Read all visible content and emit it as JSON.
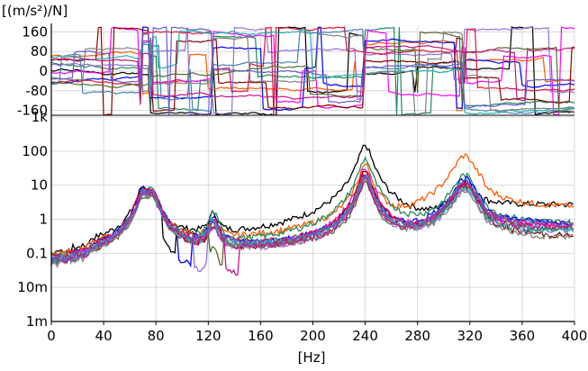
{
  "chart_data": {
    "type": "line",
    "units": {
      "y": "[(m/s²)/N]",
      "x": "[Hz]"
    },
    "x_axis": {
      "range": [
        0,
        400
      ],
      "ticks": [
        0,
        40,
        80,
        120,
        160,
        200,
        240,
        280,
        320,
        360,
        400
      ]
    },
    "phase_panel": {
      "ylim": [
        -180,
        180
      ],
      "ticks": [
        160,
        80,
        0,
        -80,
        -160
      ],
      "tick_labels": [
        "160",
        "80",
        "0",
        "-80",
        "-160"
      ],
      "grid": true
    },
    "magnitude_panel": {
      "scale": "log",
      "ylim": [
        0.001,
        1000
      ],
      "ticks": [
        1000,
        100,
        10,
        1,
        0.1,
        0.01,
        0.001
      ],
      "tick_labels": [
        "1k",
        "100",
        "10",
        "1",
        "0.1",
        "10m",
        "1m"
      ],
      "grid": true
    },
    "resonance_frequencies_hz": [
      70,
      77,
      124,
      240,
      316
    ],
    "series": [
      {
        "color": "#000000",
        "peak_magnitudes": [
          8,
          5,
          1.2,
          150,
          12
        ],
        "baseline": 0.08,
        "tail": 6
      },
      {
        "color": "#ff5a00",
        "peak_magnitudes": [
          5,
          6,
          0.8,
          40,
          75
        ],
        "baseline": 0.05,
        "tail": 5
      },
      {
        "color": "#1f8a5a",
        "peak_magnitudes": [
          5,
          7,
          1.5,
          60,
          20
        ],
        "baseline": 0.04,
        "tail": 1.5
      },
      {
        "color": "#0000ff",
        "peak_magnitudes": [
          6,
          6,
          1.0,
          20,
          16
        ],
        "baseline": 0.05,
        "tail": 1.5
      },
      {
        "color": "#ff00ff",
        "peak_magnitudes": [
          5,
          5,
          0.5,
          30,
          12
        ],
        "baseline": 0.02,
        "tail": 1.2
      },
      {
        "color": "#8b0000",
        "peak_magnitudes": [
          4,
          5,
          0.6,
          25,
          10
        ],
        "baseline": 0.03,
        "tail": 0.5
      },
      {
        "color": "#9370db",
        "peak_magnitudes": [
          4,
          6,
          0.7,
          15,
          8
        ],
        "baseline": 0.03,
        "tail": 0.8
      },
      {
        "color": "#4682b4",
        "peak_magnitudes": [
          5,
          4,
          0.6,
          18,
          14
        ],
        "baseline": 0.04,
        "tail": 1.0
      },
      {
        "color": "#dc143c",
        "peak_magnitudes": [
          6,
          7,
          1.0,
          22,
          12
        ],
        "baseline": 0.05,
        "tail": 1.3
      },
      {
        "color": "#556b2f",
        "peak_magnitudes": [
          3,
          5,
          0.8,
          12,
          10
        ],
        "baseline": 0.04,
        "tail": 0.9
      },
      {
        "color": "#20b2aa",
        "peak_magnitudes": [
          5,
          5,
          0.9,
          20,
          9
        ],
        "baseline": 0.05,
        "tail": 0.7
      },
      {
        "color": "#808080",
        "peak_magnitudes": [
          4,
          4,
          0.7,
          16,
          7
        ],
        "baseline": 0.04,
        "tail": 0.4
      },
      {
        "color": "#c71585",
        "peak_magnitudes": [
          5,
          5,
          0.8,
          14,
          11
        ],
        "baseline": 0.04,
        "tail": 1.1
      },
      {
        "color": "#6a5acd",
        "peak_magnitudes": [
          4,
          6,
          0.9,
          18,
          13
        ],
        "baseline": 0.05,
        "tail": 1.4
      }
    ]
  }
}
